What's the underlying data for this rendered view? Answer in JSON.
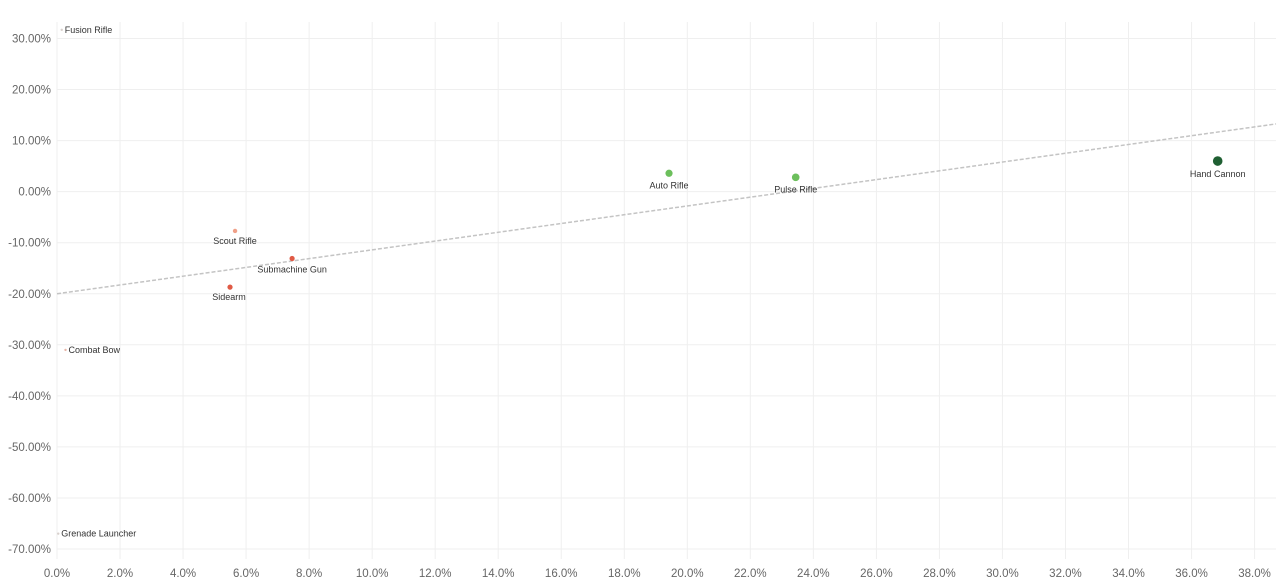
{
  "chart_data": {
    "type": "scatter",
    "title": "",
    "xlabel": "",
    "ylabel": "",
    "xlim": [
      0,
      0.3868
    ],
    "ylim": [
      -0.7,
      0.3
    ],
    "x_ticks": [
      "0.0%",
      "2.0%",
      "4.0%",
      "6.0%",
      "8.0%",
      "10.0%",
      "12.0%",
      "14.0%",
      "16.0%",
      "18.0%",
      "20.0%",
      "22.0%",
      "24.0%",
      "26.0%",
      "28.0%",
      "30.0%",
      "32.0%",
      "34.0%",
      "36.0%",
      "38.0%"
    ],
    "y_ticks": [
      "30.00%",
      "20.00%",
      "10.00%",
      "0.00%",
      "-10.00%",
      "-20.00%",
      "-30.00%",
      "-40.00%",
      "-50.00%",
      "-60.00%",
      "-70.00%"
    ],
    "grid": true,
    "trend_line": {
      "intercept": -0.2,
      "slope": 0.86
    },
    "points": [
      {
        "label": "Fusion Rifle",
        "x": 0.0015,
        "y": 0.317,
        "color": "#d8d0cc",
        "size": 1.2
      },
      {
        "label": "Grenade Launcher",
        "x": 0.0004,
        "y": -0.67,
        "color": "#d8d0cc",
        "size": 1.2
      },
      {
        "label": "Combat Bow",
        "x": 0.0027,
        "y": -0.31,
        "color": "#e8b4a6",
        "size": 1.2
      },
      {
        "label": "Scout Rifle",
        "x": 0.0565,
        "y": -0.077,
        "color": "#f0a088",
        "size": 2.2
      },
      {
        "label": "Submachine Gun",
        "x": 0.0746,
        "y": -0.131,
        "color": "#e05a45",
        "size": 2.6
      },
      {
        "label": "Sidearm",
        "x": 0.0549,
        "y": -0.187,
        "color": "#e05a45",
        "size": 2.6
      },
      {
        "label": "Auto Rifle",
        "x": 0.1942,
        "y": 0.036,
        "color": "#6cbf5c",
        "size": 3.6
      },
      {
        "label": "Pulse Rifle",
        "x": 0.2344,
        "y": 0.028,
        "color": "#6cbf5c",
        "size": 3.8
      },
      {
        "label": "Hand Cannon",
        "x": 0.3683,
        "y": 0.06,
        "color": "#1f5f32",
        "size": 4.8
      }
    ]
  }
}
